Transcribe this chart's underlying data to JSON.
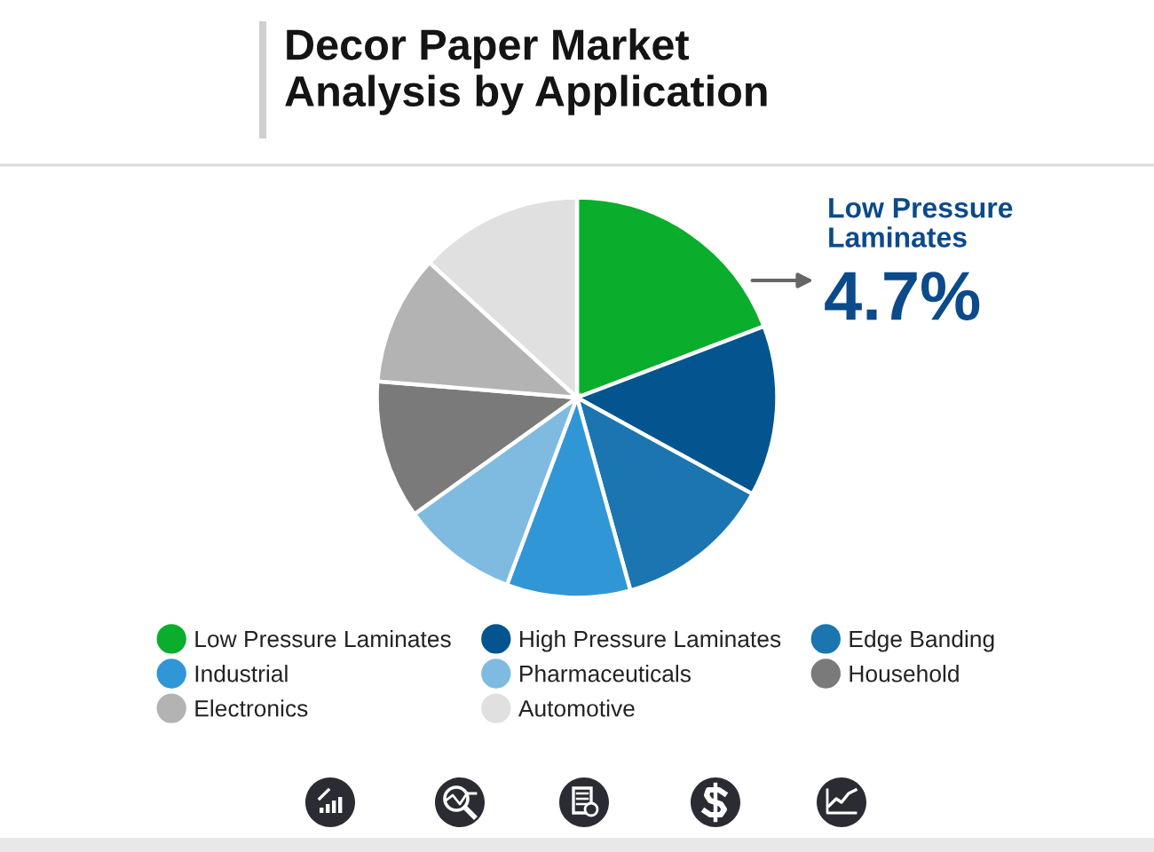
{
  "chart_data": {
    "type": "pie",
    "title": "Decor Paper Market\nAnalysis by Application",
    "categories": [
      "Low Pressure Laminates",
      "High Pressure Laminates",
      "Edge Banding",
      "Industrial",
      "Pharmaceuticals",
      "Household",
      "Electronics",
      "Automotive"
    ],
    "values": [
      19.2,
      13.8,
      12.7,
      10.0,
      9.4,
      11.2,
      10.5,
      13.2
    ],
    "colors": [
      "#0aad2c",
      "#04558f",
      "#1b75b0",
      "#3196d6",
      "#7fbbe0",
      "#7a7a7a",
      "#b3b3b3",
      "#e0e0e0"
    ],
    "legend": "bottom",
    "annotations": [
      "Low Pressure\nLaminates",
      "4.7%"
    ]
  }
}
